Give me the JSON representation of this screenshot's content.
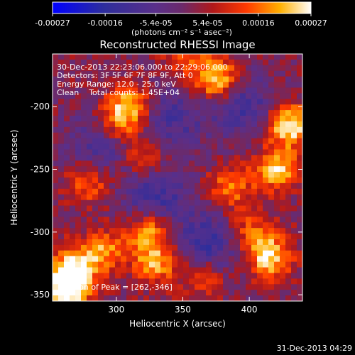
{
  "chart_data": {
    "type": "heatmap",
    "title": "Reconstructed RHESSI Image",
    "xlabel": "Heliocentric X (arcsec)",
    "ylabel": "Heliocentric Y (arcsec)",
    "xlim": [
      252,
      440
    ],
    "ylim": [
      -355,
      -158
    ],
    "xticks": [
      300,
      350,
      400
    ],
    "yticks": [
      -350,
      -300,
      -250,
      -200
    ],
    "colorbar": {
      "ticks": [
        -0.00027,
        -0.00016,
        -5.4e-05,
        5.4e-05,
        0.00016,
        0.00027
      ],
      "tick_labels": [
        "-0.00027",
        "-0.00016",
        "-5.4e-05",
        "5.4e-05",
        "0.00016",
        "0.00027"
      ],
      "unit_label": "(photons cm⁻² s⁻¹ asec⁻²)",
      "range": [
        -0.00027,
        0.00027
      ]
    },
    "annotations": {
      "time_range": "30-Dec-2013 22:23:06.000 to 22:29:06.000",
      "detectors": "Detectors: 3F 5F 6F 7F 8F 9F, Att 0",
      "energy": "Energy Range: 12.0 - 25.0 keV",
      "clean": "Clean    Total counts: 1.45E+04",
      "peak": "Position of Peak = [262,-346]"
    },
    "hot_spots": [
      {
        "x": 262,
        "y": -346,
        "v": 1.0
      },
      {
        "x": 267,
        "y": -330,
        "v": 0.82
      },
      {
        "x": 290,
        "y": -315,
        "v": 0.6
      },
      {
        "x": 325,
        "y": -300,
        "v": 0.7
      },
      {
        "x": 330,
        "y": -325,
        "v": 0.65
      },
      {
        "x": 310,
        "y": -200,
        "v": 0.8
      },
      {
        "x": 300,
        "y": -215,
        "v": 0.55
      },
      {
        "x": 320,
        "y": -240,
        "v": 0.6
      },
      {
        "x": 415,
        "y": -320,
        "v": 0.85
      },
      {
        "x": 430,
        "y": -215,
        "v": 0.95
      },
      {
        "x": 420,
        "y": -250,
        "v": 0.8
      },
      {
        "x": 385,
        "y": -265,
        "v": 0.55
      },
      {
        "x": 375,
        "y": -178,
        "v": 0.9
      },
      {
        "x": 365,
        "y": -335,
        "v": 0.5
      },
      {
        "x": 280,
        "y": -260,
        "v": 0.55
      },
      {
        "x": 350,
        "y": -160,
        "v": 0.4
      },
      {
        "x": 400,
        "y": -300,
        "v": 0.5
      }
    ],
    "cold_spots": [
      {
        "x": 330,
        "y": -270,
        "v": -0.55
      },
      {
        "x": 370,
        "y": -310,
        "v": -0.6
      },
      {
        "x": 290,
        "y": -230,
        "v": -0.5
      },
      {
        "x": 395,
        "y": -200,
        "v": -0.5
      },
      {
        "x": 340,
        "y": -210,
        "v": -0.45
      }
    ]
  },
  "footer": {
    "timestamp": "31-Dec-2013 04:29"
  }
}
